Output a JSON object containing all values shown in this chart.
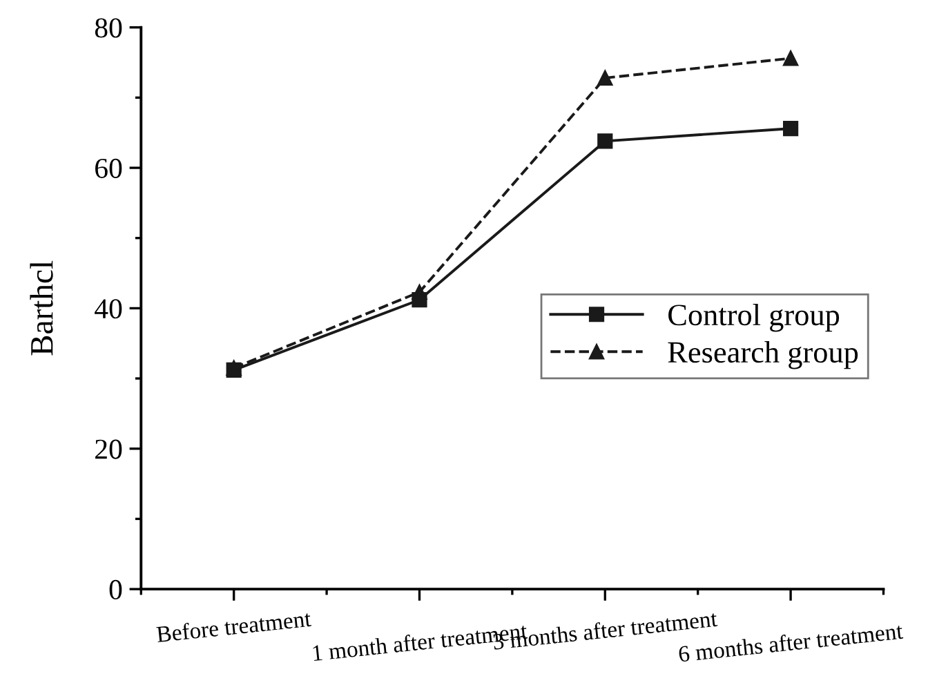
{
  "chart_data": {
    "type": "line",
    "ylabel": "Barthcl",
    "categories": [
      "Before treatment",
      "1 month after treatment",
      "3 months after treatment",
      "6 months after treatment"
    ],
    "series": [
      {
        "name": "Control group",
        "color": "#1a1a1a",
        "values": [
          31.2,
          41.2,
          63.8,
          65.6
        ],
        "marker": "square",
        "line_style": "solid"
      },
      {
        "name": "Research group",
        "color": "#1a1a1a",
        "values": [
          31.5,
          42.3,
          72.8,
          75.6
        ],
        "marker": "triangle",
        "line_style": "dashed"
      }
    ],
    "ylim": [
      0,
      80
    ],
    "yticks": [
      0,
      20,
      40,
      60,
      80
    ],
    "grid": false,
    "legend": "right"
  }
}
